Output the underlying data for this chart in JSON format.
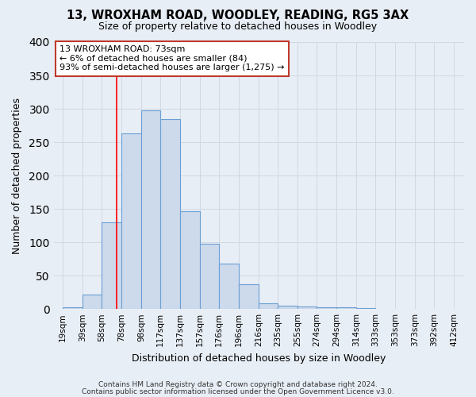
{
  "title": "13, WROXHAM ROAD, WOODLEY, READING, RG5 3AX",
  "subtitle": "Size of property relative to detached houses in Woodley",
  "xlabel": "Distribution of detached houses by size in Woodley",
  "ylabel": "Number of detached properties",
  "bar_left_edges": [
    19,
    39,
    58,
    78,
    98,
    117,
    137,
    157,
    176,
    196,
    216,
    235,
    255,
    274,
    294,
    314,
    333,
    353,
    373,
    392
  ],
  "bar_heights": [
    2,
    22,
    130,
    263,
    298,
    284,
    147,
    98,
    68,
    37,
    9,
    5,
    4,
    3,
    2,
    1,
    0,
    0,
    0,
    0
  ],
  "bar_widths": [
    20,
    19,
    20,
    20,
    19,
    20,
    20,
    19,
    20,
    20,
    19,
    20,
    19,
    20,
    20,
    19,
    20,
    20,
    19,
    20
  ],
  "tick_labels": [
    "19sqm",
    "39sqm",
    "58sqm",
    "78sqm",
    "98sqm",
    "117sqm",
    "137sqm",
    "157sqm",
    "176sqm",
    "196sqm",
    "216sqm",
    "235sqm",
    "255sqm",
    "274sqm",
    "294sqm",
    "314sqm",
    "333sqm",
    "353sqm",
    "373sqm",
    "392sqm",
    "412sqm"
  ],
  "tick_positions": [
    19,
    39,
    58,
    78,
    98,
    117,
    137,
    157,
    176,
    196,
    216,
    235,
    255,
    274,
    294,
    314,
    333,
    353,
    373,
    392,
    412
  ],
  "ylim": [
    0,
    400
  ],
  "xlim": [
    10,
    422
  ],
  "bar_color": "#cddaec",
  "bar_edge_color": "#6b9fd4",
  "red_line_x": 73,
  "annotation_title": "13 WROXHAM ROAD: 73sqm",
  "annotation_line1": "← 6% of detached houses are smaller (84)",
  "annotation_line2": "93% of semi-detached houses are larger (1,275) →",
  "background_color": "#e8eef5",
  "grid_color": "#d0d8e4",
  "footnote1": "Contains HM Land Registry data © Crown copyright and database right 2024.",
  "footnote2": "Contains public sector information licensed under the Open Government Licence v3.0."
}
